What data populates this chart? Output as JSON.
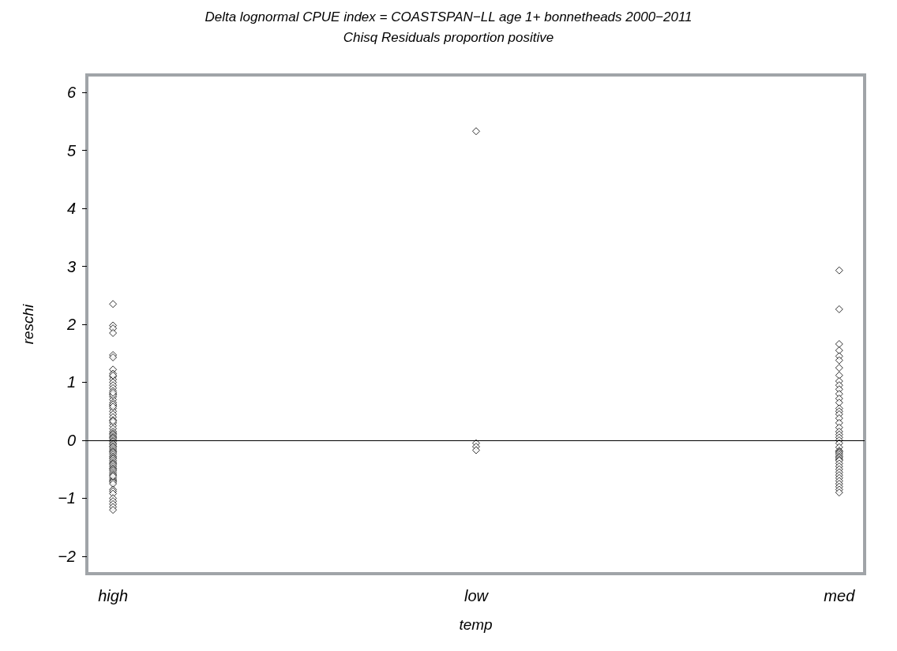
{
  "chart_data": {
    "type": "scatter",
    "title": "Delta lognormal CPUE index = COASTSPAN−LL age 1+ bonnetheads 2000−2011",
    "subtitle": "Chisq Residuals proportion positive",
    "xlabel": "temp",
    "ylabel": "reschi",
    "categories": [
      "high",
      "low",
      "med"
    ],
    "series": [
      {
        "color": "#000000",
        "x": [
          "high",
          "high",
          "high",
          "high",
          "high",
          "high",
          "high",
          "high",
          "high",
          "high",
          "high",
          "high",
          "high",
          "high",
          "high",
          "high",
          "high",
          "high",
          "high",
          "high",
          "high",
          "high",
          "high",
          "high",
          "high",
          "high",
          "high",
          "high",
          "high",
          "high",
          "high",
          "high",
          "high",
          "high",
          "high",
          "high",
          "high",
          "high",
          "high",
          "high",
          "high",
          "high",
          "high",
          "high",
          "high",
          "high",
          "high",
          "high",
          "high",
          "high",
          "high",
          "high",
          "high",
          "high",
          "high",
          "high",
          "high",
          "high",
          "high",
          "high",
          "high",
          "high",
          "high",
          "high",
          "high",
          "high",
          "high",
          "high",
          "high",
          "high",
          "high",
          "high",
          "high",
          "high",
          "high",
          "high",
          "high",
          "high"
        ],
        "values": [
          2.35,
          1.98,
          1.93,
          1.85,
          1.47,
          1.43,
          1.22,
          1.15,
          1.1,
          1.05,
          1.0,
          0.95,
          0.9,
          0.85,
          0.8,
          0.75,
          0.7,
          0.65,
          0.6,
          0.55,
          0.5,
          0.45,
          0.4,
          0.35,
          0.3,
          0.25,
          0.2,
          0.15,
          0.12,
          0.1,
          0.07,
          0.05,
          0.03,
          0.0,
          -0.02,
          -0.05,
          -0.07,
          -0.1,
          -0.12,
          -0.15,
          -0.18,
          -0.2,
          -0.22,
          -0.25,
          -0.28,
          -0.3,
          -0.32,
          -0.35,
          -0.38,
          -0.4,
          -0.42,
          -0.45,
          -0.48,
          -0.5,
          -0.52,
          -0.55,
          -0.58,
          -0.6,
          -0.65,
          -0.68,
          -0.7,
          -0.72,
          -0.75,
          -0.85,
          -0.88,
          -0.92,
          -1.0,
          -1.05,
          -1.1,
          -1.15,
          -1.2,
          0.62,
          0.58,
          0.78,
          0.82,
          1.12,
          -0.62,
          0.33
        ]
      },
      {
        "color": "#000000",
        "x": [
          "low",
          "low",
          "low",
          "low"
        ],
        "values": [
          5.33,
          -0.05,
          -0.11,
          -0.17
        ]
      },
      {
        "color": "#000000",
        "x": [
          "med",
          "med",
          "med",
          "med",
          "med",
          "med",
          "med",
          "med",
          "med",
          "med",
          "med",
          "med",
          "med",
          "med",
          "med",
          "med",
          "med",
          "med",
          "med",
          "med",
          "med",
          "med",
          "med",
          "med",
          "med",
          "med",
          "med",
          "med",
          "med",
          "med",
          "med",
          "med",
          "med",
          "med",
          "med",
          "med",
          "med",
          "med",
          "med",
          "med",
          "med",
          "med",
          "med",
          "med",
          "med"
        ],
        "values": [
          2.93,
          2.26,
          1.66,
          1.55,
          1.45,
          1.38,
          1.25,
          1.12,
          1.02,
          0.95,
          0.88,
          0.8,
          0.72,
          0.65,
          0.55,
          0.5,
          0.45,
          0.38,
          0.3,
          0.22,
          0.15,
          0.1,
          0.05,
          0.0,
          -0.05,
          -0.12,
          -0.18,
          -0.2,
          -0.22,
          -0.25,
          -0.28,
          -0.3,
          -0.33,
          -0.35,
          -0.4,
          -0.45,
          -0.5,
          -0.55,
          -0.6,
          -0.65,
          -0.7,
          -0.75,
          -0.8,
          -0.85,
          -0.9
        ]
      }
    ],
    "ylim": [
      -2.3,
      6.3
    ],
    "yticks": [
      -2,
      -1,
      0,
      1,
      2,
      3,
      4,
      5,
      6
    ],
    "ref_lines": [
      {
        "axis": "y",
        "value": 0,
        "color": "#000000"
      }
    ],
    "marker": "diamond",
    "grid": false
  }
}
